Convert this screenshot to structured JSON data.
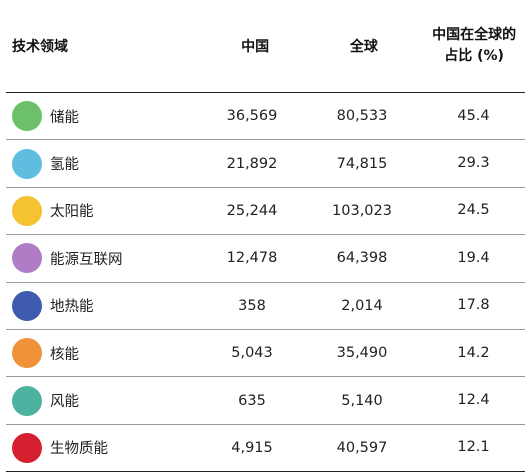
{
  "table": {
    "headers": {
      "field": "技术领域",
      "china": "中国",
      "global": "全球",
      "share_line1": "中国在全球的",
      "share_line2": "占比 (%)"
    },
    "rows": [
      {
        "name": "储能",
        "china": "36,569",
        "global": "80,533",
        "share": "45.4",
        "color": "#6cc06a"
      },
      {
        "name": "氢能",
        "china": "21,892",
        "global": "74,815",
        "share": "29.3",
        "color": "#5fbde0"
      },
      {
        "name": "太阳能",
        "china": "25,244",
        "global": "103,023",
        "share": "24.5",
        "color": "#f5c232"
      },
      {
        "name": "能源互联网",
        "china": "12,478",
        "global": "64,398",
        "share": "19.4",
        "color": "#b07cc6"
      },
      {
        "name": "地热能",
        "china": "358",
        "global": "2,014",
        "share": "17.8",
        "color": "#3e5bb0"
      },
      {
        "name": "核能",
        "china": "5,043",
        "global": "35,490",
        "share": "14.2",
        "color": "#f0923a"
      },
      {
        "name": "风能",
        "china": "635",
        "global": "5,140",
        "share": "12.4",
        "color": "#4db3a0"
      },
      {
        "name": "生物质能",
        "china": "4,915",
        "global": "40,597",
        "share": "12.1",
        "color": "#d6202f"
      }
    ]
  }
}
